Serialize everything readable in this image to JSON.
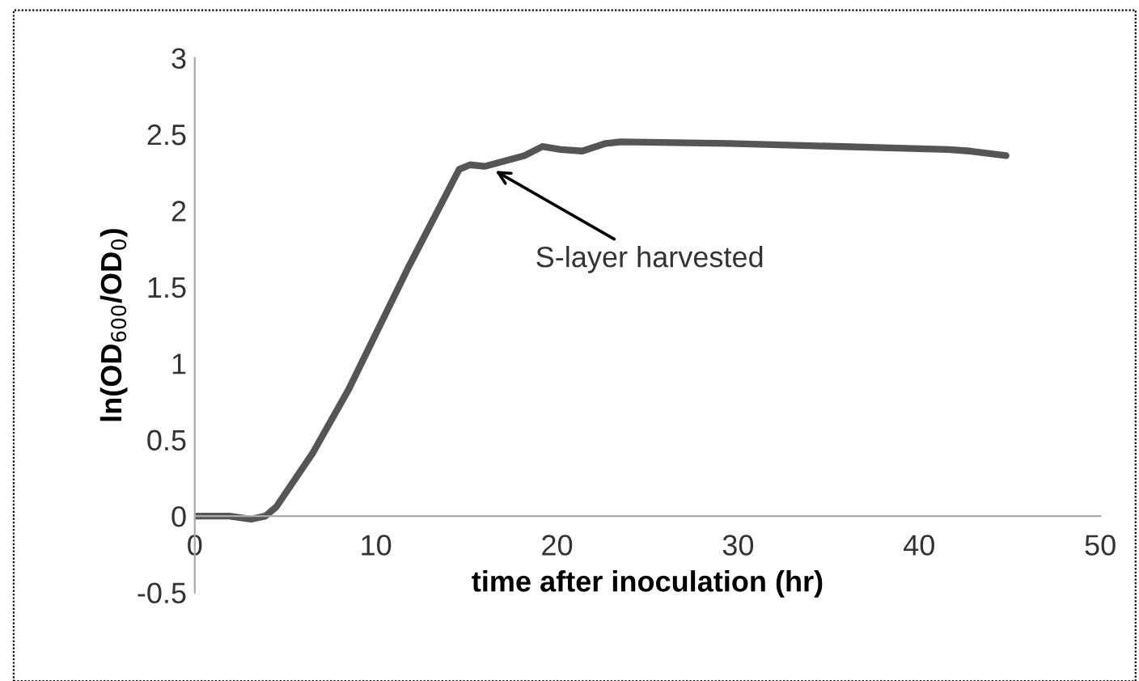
{
  "chart_data": {
    "type": "line",
    "xlabel": "time after inoculation (hr)",
    "ylabel": "ln(OD$_{600}$/OD$_{0}$)",
    "x": [
      0,
      1.9,
      3.1,
      3.9,
      4.5,
      6.5,
      8.5,
      11.8,
      14.6,
      15.2,
      16,
      18.2,
      19.2,
      20.2,
      21.4,
      22.7,
      23.5,
      29.5,
      41.6,
      42.8,
      44.8
    ],
    "series": [
      {
        "color": "#555555",
        "values": [
          0,
          0,
          -0.02,
          0,
          0.06,
          0.41,
          0.83,
          1.63,
          2.27,
          2.3,
          2.29,
          2.36,
          2.42,
          2.4,
          2.39,
          2.44,
          2.45,
          2.44,
          2.4,
          2.39,
          2.36
        ]
      }
    ],
    "xlim": [
      0,
      50
    ],
    "xticks": [
      0,
      10,
      20,
      30,
      40,
      50
    ],
    "ylim": [
      -0.5,
      3
    ],
    "yticks": [
      -0.5,
      0,
      0.5,
      1,
      1.5,
      2,
      2.5,
      3
    ],
    "annotations": [
      {
        "text": "S-layer harvested",
        "x": 16.6,
        "y": 2.26
      }
    ],
    "grid": false,
    "legend": false,
    "marker": "none",
    "line_style": "solid"
  }
}
